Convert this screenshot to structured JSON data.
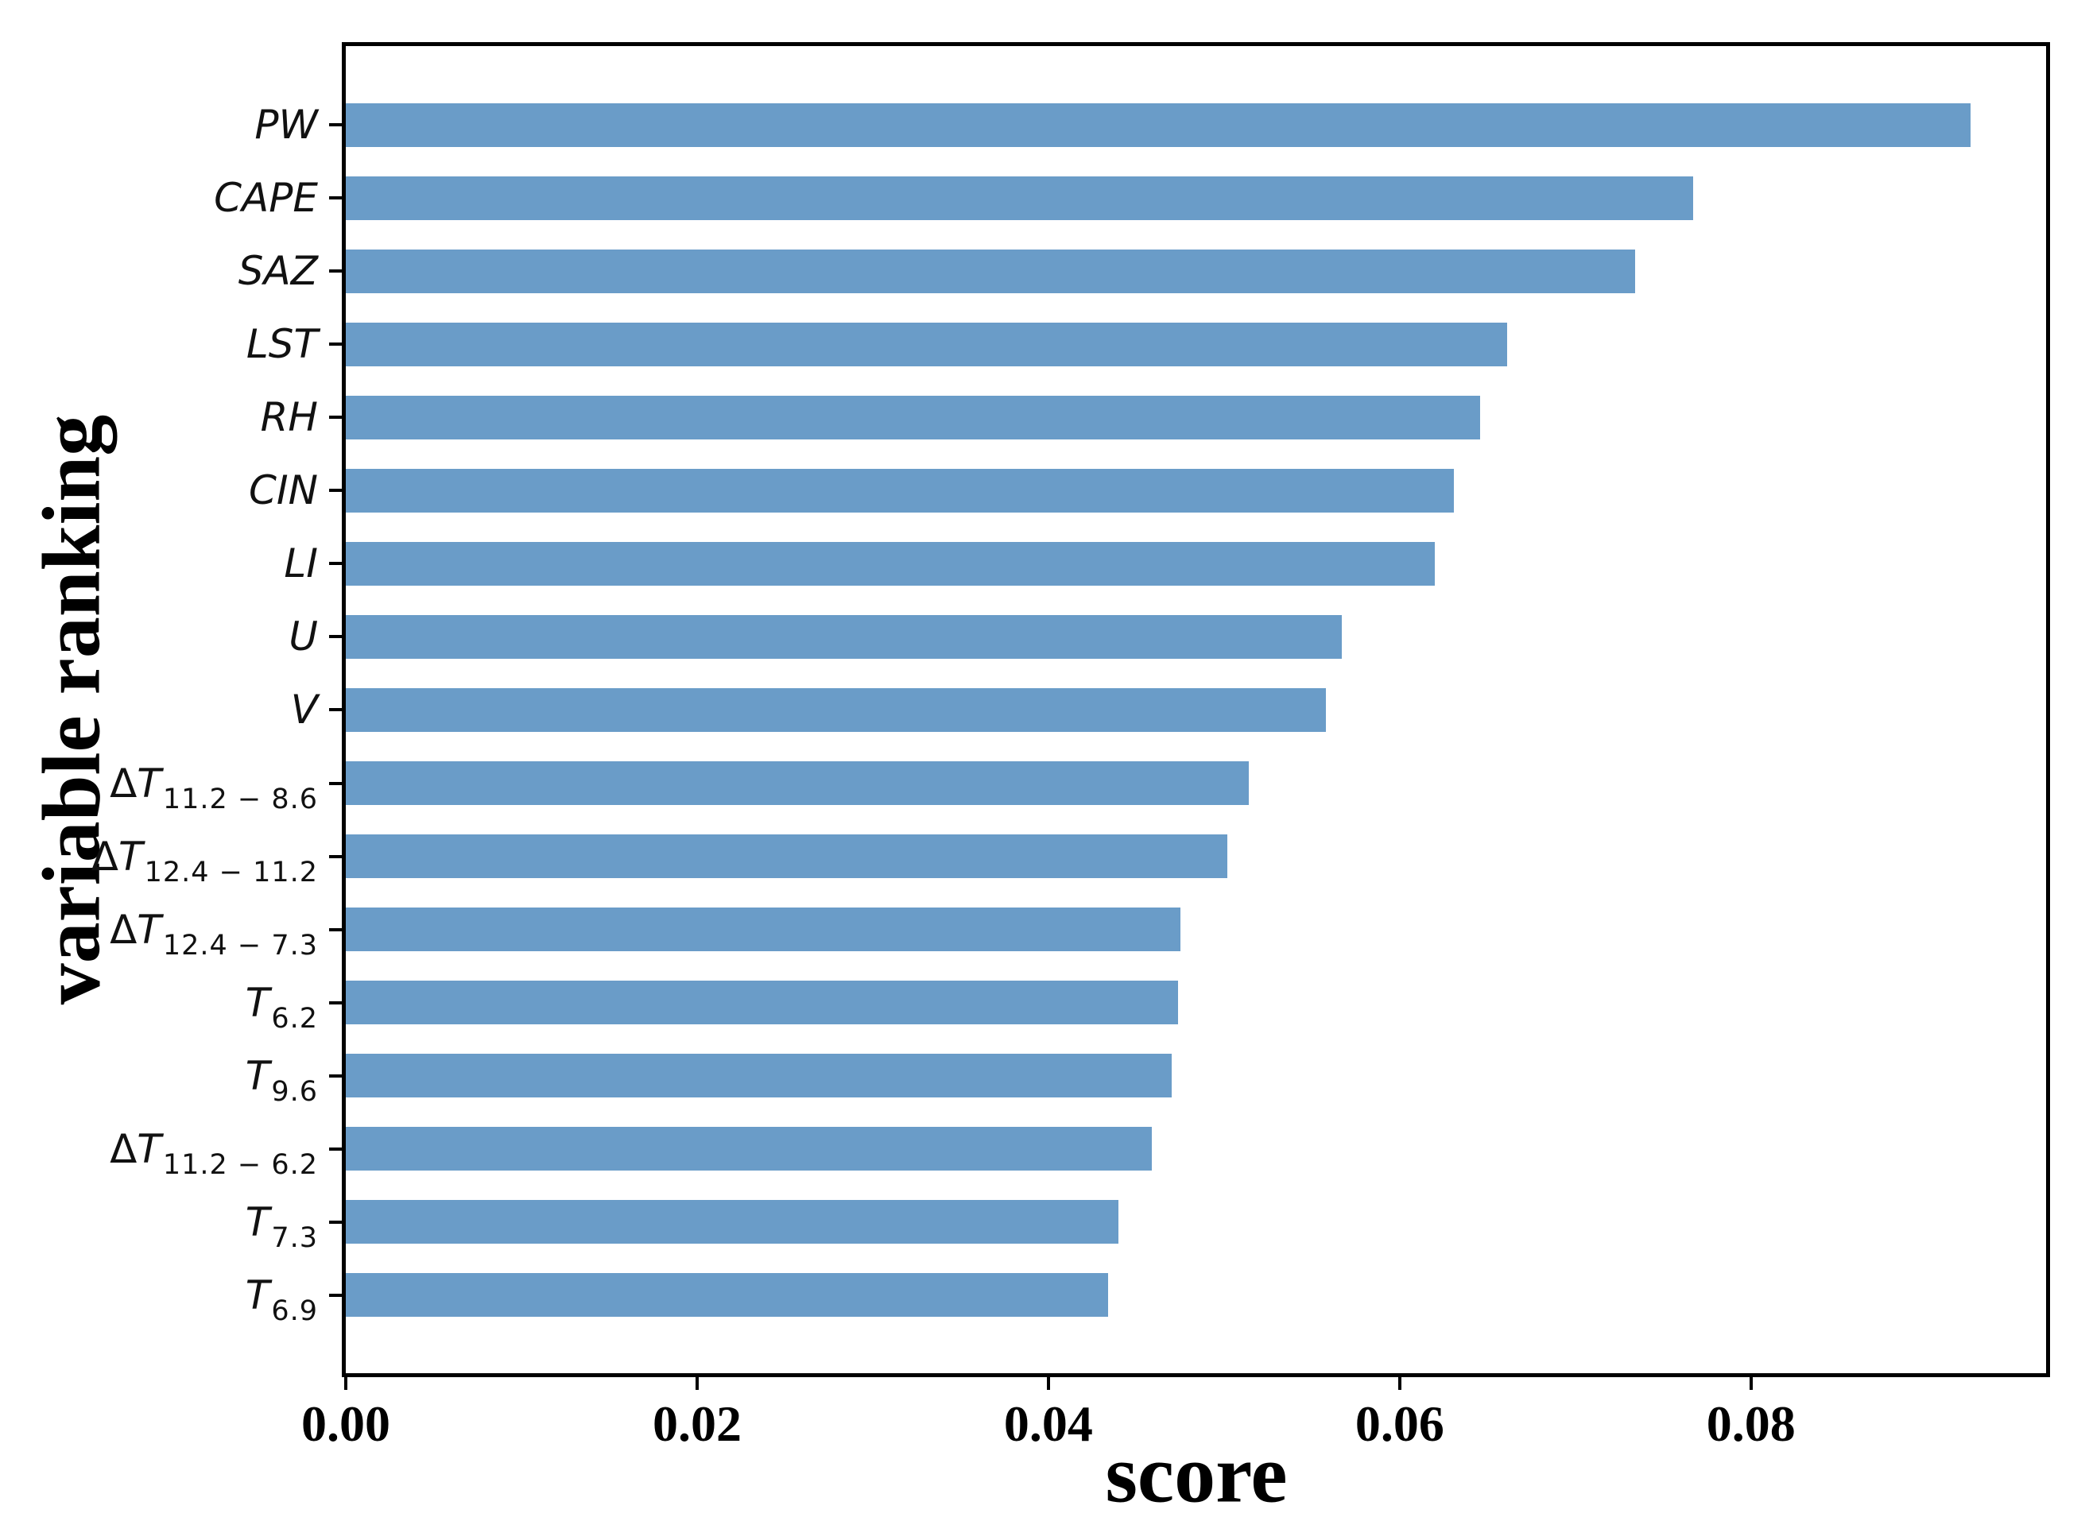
{
  "chart_data": {
    "type": "bar",
    "orientation": "horizontal",
    "title": "",
    "xlabel": "score",
    "ylabel": "variable ranking",
    "categories": [
      "PW",
      "CAPE",
      "SAZ",
      "LST",
      "RH",
      "CIN",
      "LI",
      "U",
      "V",
      "ΔT_11.2−8.6",
      "ΔT_12.4−11.2",
      "ΔT_12.4−7.3",
      "T_6.2",
      "T_9.6",
      "ΔT_11.2−6.2",
      "T_7.3",
      "T_6.9"
    ],
    "category_labels": [
      {
        "prefix": "",
        "main": "PW",
        "sub": ""
      },
      {
        "prefix": "",
        "main": "CAPE",
        "sub": ""
      },
      {
        "prefix": "",
        "main": "SAZ",
        "sub": ""
      },
      {
        "prefix": "",
        "main": "LST",
        "sub": ""
      },
      {
        "prefix": "",
        "main": "RH",
        "sub": ""
      },
      {
        "prefix": "",
        "main": "CIN",
        "sub": ""
      },
      {
        "prefix": "",
        "main": "LI",
        "sub": ""
      },
      {
        "prefix": "",
        "main": "U",
        "sub": ""
      },
      {
        "prefix": "",
        "main": "V",
        "sub": ""
      },
      {
        "prefix": "Δ",
        "main": "T",
        "sub": "11.2 − 8.6"
      },
      {
        "prefix": "Δ",
        "main": "T",
        "sub": "12.4 − 11.2"
      },
      {
        "prefix": "Δ",
        "main": "T",
        "sub": "12.4 − 7.3"
      },
      {
        "prefix": "",
        "main": "T",
        "sub": "6.2"
      },
      {
        "prefix": "",
        "main": "T",
        "sub": "9.6"
      },
      {
        "prefix": "Δ",
        "main": "T",
        "sub": "11.2 − 6.2"
      },
      {
        "prefix": "",
        "main": "T",
        "sub": "7.3"
      },
      {
        "prefix": "",
        "main": "T",
        "sub": "6.9"
      }
    ],
    "values": [
      0.0925,
      0.0767,
      0.0734,
      0.0661,
      0.0646,
      0.0631,
      0.062,
      0.0567,
      0.0558,
      0.0514,
      0.0502,
      0.0475,
      0.0474,
      0.047,
      0.0459,
      0.044,
      0.0434
    ],
    "xlim": [
      0,
      0.0968
    ],
    "xticks": {
      "values": [
        0,
        0.02,
        0.04,
        0.06,
        0.08
      ],
      "labels": [
        "0.00",
        "0.02",
        "0.04",
        "0.06",
        "0.08"
      ]
    },
    "bar_color": "#6a9cc8",
    "grid": false,
    "legend": null
  }
}
